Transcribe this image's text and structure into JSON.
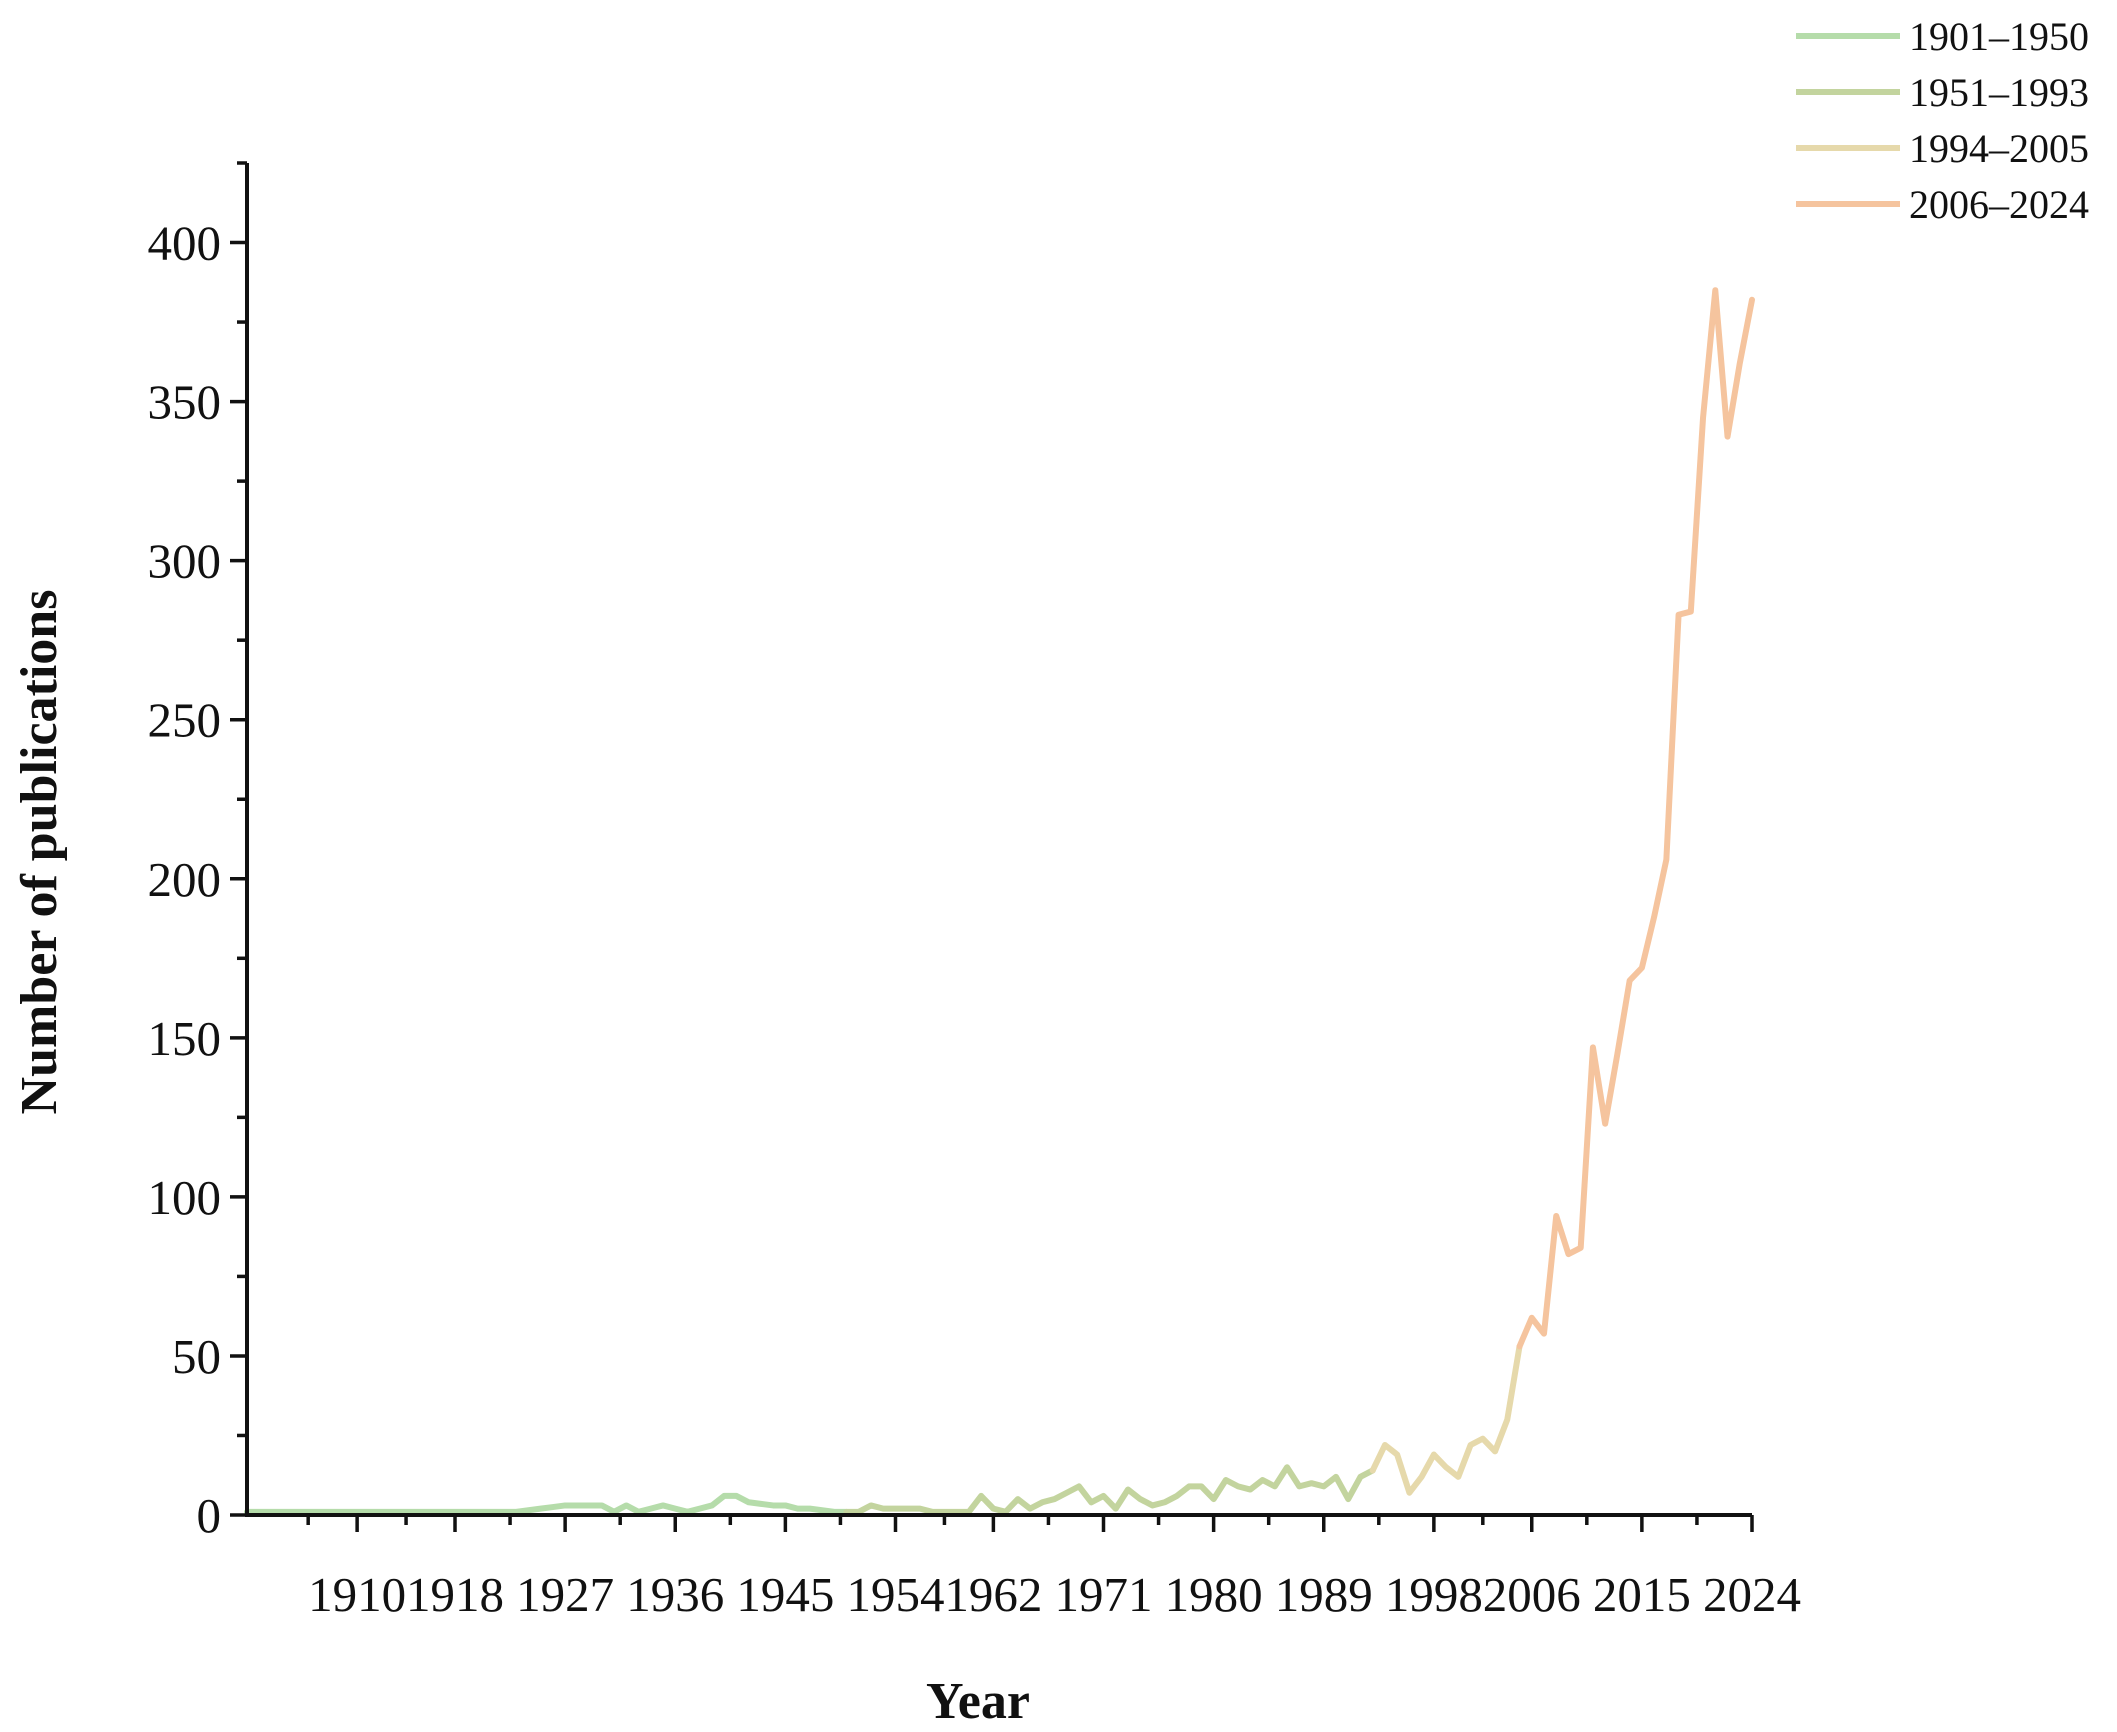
{
  "chart_data": {
    "type": "line",
    "title": "",
    "xlabel": "Year",
    "ylabel": "Number of publications",
    "xlim": [
      1901,
      2024
    ],
    "ylim": [
      0,
      425
    ],
    "xticks": [
      1910,
      1918,
      1927,
      1936,
      1945,
      1954,
      1962,
      1971,
      1980,
      1989,
      1998,
      2006,
      2015,
      2024
    ],
    "yticks": [
      0,
      50,
      100,
      150,
      200,
      250,
      300,
      350,
      400
    ],
    "legend_position": "top-right",
    "grid": false,
    "series": [
      {
        "name": "1901–1950",
        "color": "#b5dcaa",
        "x": [
          1901,
          1902,
          1903,
          1904,
          1905,
          1906,
          1907,
          1908,
          1909,
          1910,
          1911,
          1912,
          1913,
          1914,
          1915,
          1916,
          1917,
          1918,
          1919,
          1920,
          1921,
          1922,
          1923,
          1924,
          1925,
          1926,
          1927,
          1928,
          1929,
          1930,
          1931,
          1932,
          1933,
          1934,
          1935,
          1936,
          1937,
          1938,
          1939,
          1940,
          1941,
          1942,
          1943,
          1944,
          1945,
          1946,
          1947,
          1948,
          1949,
          1950
        ],
        "values": [
          1,
          1,
          1,
          1,
          1,
          1,
          1,
          1,
          1,
          1,
          1,
          1,
          1,
          1,
          1,
          1,
          1,
          1,
          1,
          1,
          1,
          1,
          1,
          1.5,
          2,
          2.5,
          3,
          3,
          3,
          3,
          1,
          3,
          1,
          2,
          3,
          2,
          1,
          2,
          3,
          6,
          6,
          4,
          3.5,
          3,
          3,
          2,
          2,
          1.5,
          1,
          1
        ]
      },
      {
        "name": "1951–1993",
        "color": "#c3d49e",
        "x": [
          1950,
          1951,
          1952,
          1953,
          1954,
          1955,
          1956,
          1957,
          1958,
          1959,
          1960,
          1961,
          1962,
          1963,
          1964,
          1965,
          1966,
          1967,
          1968,
          1969,
          1970,
          1971,
          1972,
          1973,
          1974,
          1975,
          1976,
          1977,
          1978,
          1979,
          1980,
          1981,
          1982,
          1983,
          1984,
          1985,
          1986,
          1987,
          1988,
          1989,
          1990,
          1991,
          1992,
          1993
        ],
        "values": [
          1,
          1,
          3,
          2,
          2,
          2,
          2,
          1,
          1,
          1,
          1,
          6,
          2,
          1,
          5,
          2,
          4,
          5,
          7,
          9,
          4,
          6,
          2,
          8,
          5,
          3,
          4,
          6,
          9,
          9,
          5,
          11,
          9,
          8,
          11,
          9,
          15,
          9,
          10,
          9,
          12,
          5,
          12,
          14
        ]
      },
      {
        "name": "1994–2005",
        "color": "#e6d9ab",
        "x": [
          1993,
          1994,
          1995,
          1996,
          1997,
          1998,
          1999,
          2000,
          2001,
          2002,
          2003,
          2004,
          2005
        ],
        "values": [
          14,
          22,
          19,
          7,
          12,
          19,
          15,
          12,
          22,
          24,
          20,
          30,
          53
        ]
      },
      {
        "name": "2006–2024",
        "color": "#f5c49e",
        "x": [
          2005,
          2006,
          2007,
          2008,
          2009,
          2010,
          2011,
          2012,
          2013,
          2014,
          2015,
          2016,
          2017,
          2018,
          2019,
          2020,
          2021,
          2022,
          2023,
          2024
        ],
        "values": [
          53,
          62,
          57,
          94,
          82,
          84,
          147,
          123,
          145,
          168,
          172,
          188,
          206,
          283,
          284,
          345,
          385,
          339,
          362,
          382
        ]
      }
    ]
  }
}
